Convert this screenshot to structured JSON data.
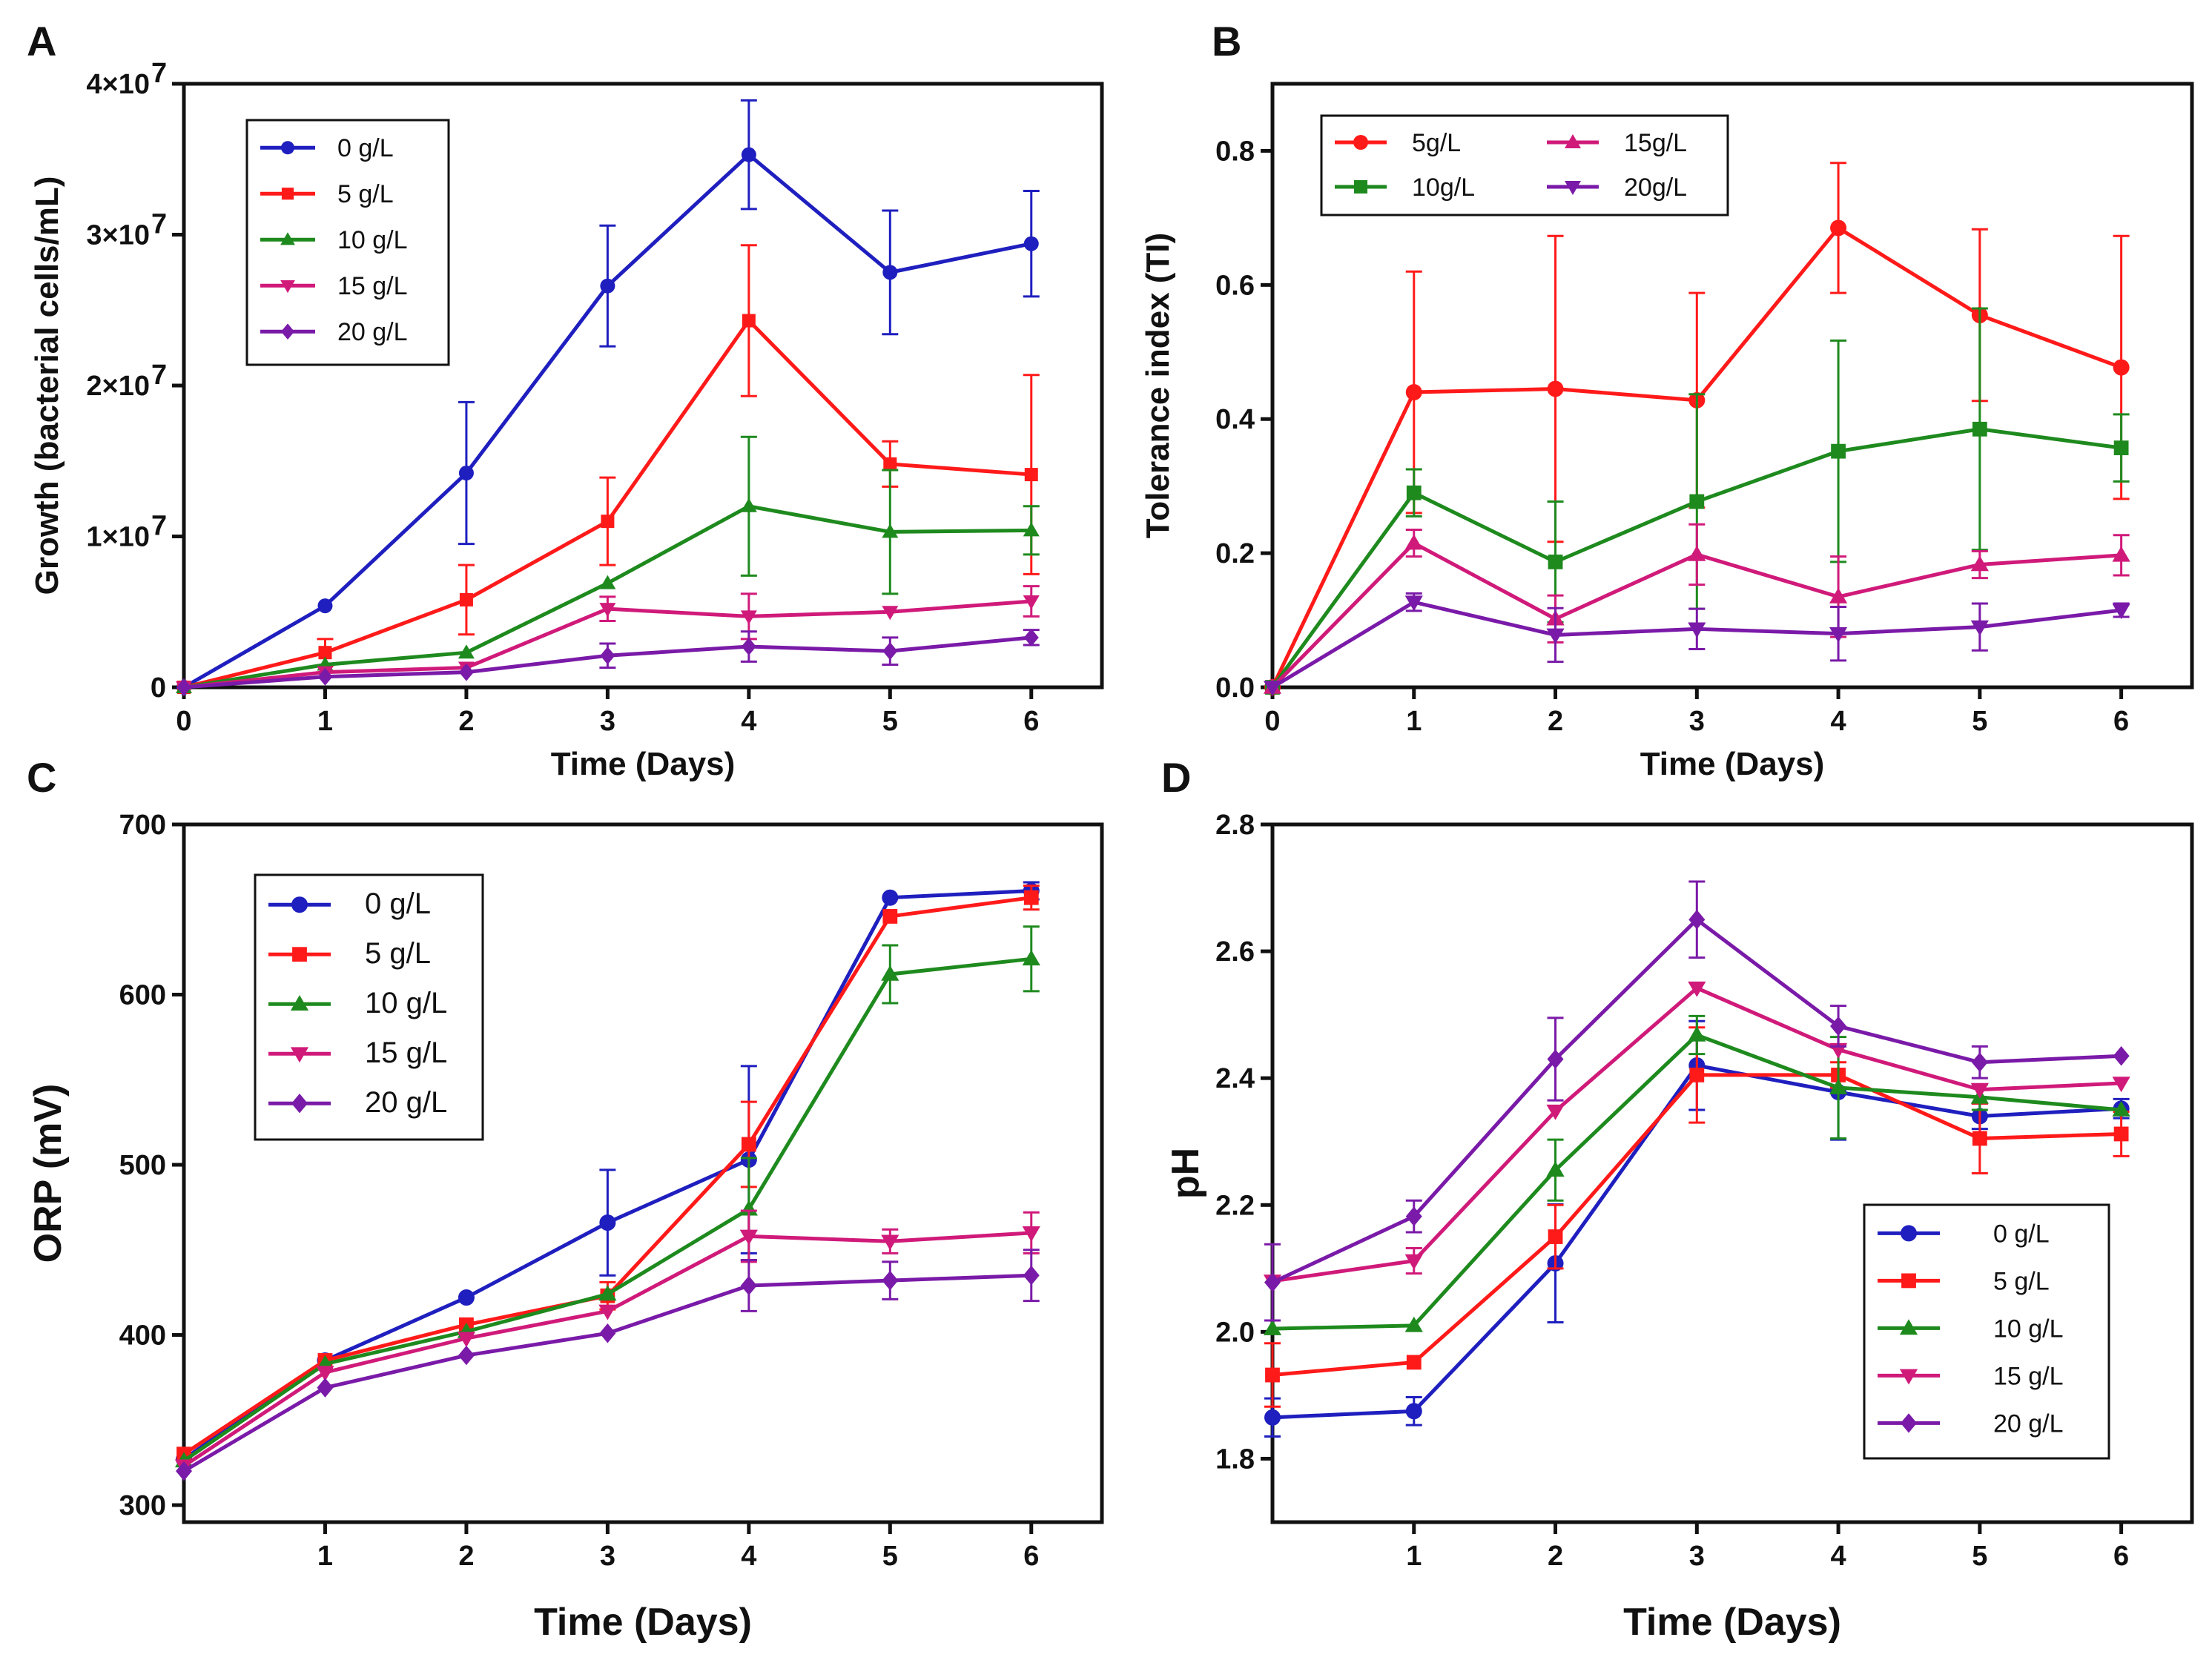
{
  "colors": {
    "0": "#1f1fbf",
    "5": "#ff1a1a",
    "10": "#1e8a1e",
    "15": "#d01a7a",
    "20": "#7a1aa8"
  },
  "chart_data": [
    {
      "id": "A",
      "panel_label": "A",
      "type": "line",
      "title": "",
      "xlabel": "Time (Days)",
      "ylabel": "Growth (bacterial cells/mL)",
      "xlim": [
        0,
        6.5
      ],
      "ylim": [
        0,
        40000000
      ],
      "xticks": [
        0,
        1,
        2,
        3,
        4,
        5,
        6
      ],
      "xtick_labels": [
        "0",
        "1",
        "2",
        "3",
        "4",
        "5",
        "6"
      ],
      "yticks": [
        0,
        10000000,
        20000000,
        30000000,
        40000000
      ],
      "ytick_labels": [
        "0",
        "1×10",
        "2×10",
        "3×10",
        "4×10"
      ],
      "ytick_exponent": "7",
      "legend_position": "top-left",
      "series": [
        {
          "name": "0 g/L",
          "color_key": "0",
          "marker": "circle",
          "x": [
            0,
            1,
            2,
            3,
            4,
            5,
            6
          ],
          "values": [
            0,
            5400000,
            14200000,
            26600000,
            35300000,
            27500000,
            29400000
          ],
          "errors": [
            0,
            0,
            4700000,
            4000000,
            3600000,
            4100000,
            3500000
          ]
        },
        {
          "name": "5 g/L",
          "color_key": "5",
          "marker": "square",
          "x": [
            0,
            1,
            2,
            3,
            4,
            5,
            6
          ],
          "values": [
            0,
            2300000,
            5800000,
            11000000,
            24300000,
            14800000,
            14100000
          ],
          "errors": [
            0,
            900000,
            2300000,
            2900000,
            5000000,
            1500000,
            6600000
          ]
        },
        {
          "name": "10 g/L",
          "color_key": "10",
          "marker": "triangle-up",
          "x": [
            0,
            1,
            2,
            3,
            4,
            5,
            6
          ],
          "values": [
            0,
            1500000,
            2300000,
            6900000,
            12000000,
            10300000,
            10400000
          ],
          "errors": [
            0,
            0,
            0,
            0,
            4600000,
            4100000,
            1600000
          ]
        },
        {
          "name": "15 g/L",
          "color_key": "15",
          "marker": "triangle-down",
          "x": [
            0,
            1,
            2,
            3,
            4,
            5,
            6
          ],
          "values": [
            0,
            1000000,
            1300000,
            5200000,
            4700000,
            5000000,
            5700000
          ],
          "errors": [
            0,
            0,
            0,
            800000,
            1500000,
            0,
            1000000
          ]
        },
        {
          "name": "20 g/L",
          "color_key": "20",
          "marker": "diamond",
          "x": [
            0,
            1,
            2,
            3,
            4,
            5,
            6
          ],
          "values": [
            0,
            700000,
            1000000,
            2100000,
            2700000,
            2400000,
            3300000
          ],
          "errors": [
            0,
            0,
            0,
            800000,
            1000000,
            900000,
            500000
          ]
        }
      ]
    },
    {
      "id": "B",
      "panel_label": "B",
      "type": "line",
      "title": "",
      "xlabel": "Time (Days)",
      "ylabel": "Tolerance index (TI)",
      "xlim": [
        0,
        6.5
      ],
      "ylim": [
        0,
        0.9
      ],
      "xticks": [
        0,
        1,
        2,
        3,
        4,
        5,
        6
      ],
      "xtick_labels": [
        "0",
        "1",
        "2",
        "3",
        "4",
        "5",
        "6"
      ],
      "yticks": [
        0,
        0.2,
        0.4,
        0.6,
        0.8
      ],
      "ytick_labels": [
        "0.0",
        "0.2",
        "0.4",
        "0.6",
        "0.8"
      ],
      "legend_position": "top-left",
      "series": [
        {
          "name": "5g/L",
          "color_key": "5",
          "marker": "circle",
          "x": [
            0,
            1,
            2,
            3,
            4,
            5,
            6
          ],
          "values": [
            0,
            0.44,
            0.445,
            0.428,
            0.685,
            0.555,
            0.477
          ],
          "errors": [
            0,
            0.18,
            0.228,
            0.16,
            0.097,
            0.128,
            0.196
          ]
        },
        {
          "name": "10g/L",
          "color_key": "10",
          "marker": "square",
          "x": [
            0,
            1,
            2,
            3,
            4,
            5,
            6
          ],
          "values": [
            0,
            0.29,
            0.187,
            0.277,
            0.352,
            0.385,
            0.357
          ],
          "errors": [
            0,
            0.035,
            0.09,
            0.16,
            0.165,
            0.18,
            0.05
          ]
        },
        {
          "name": "15g/L",
          "color_key": "15",
          "marker": "triangle-up",
          "x": [
            0,
            1,
            2,
            3,
            4,
            5,
            6
          ],
          "values": [
            0,
            0.215,
            0.102,
            0.198,
            0.135,
            0.183,
            0.197
          ],
          "errors": [
            0,
            0.02,
            0.035,
            0.045,
            0.06,
            0.02,
            0.03
          ]
        },
        {
          "name": "20g/L",
          "color_key": "20",
          "marker": "triangle-down",
          "x": [
            0,
            1,
            2,
            3,
            4,
            5,
            6
          ],
          "values": [
            0,
            0.127,
            0.078,
            0.087,
            0.08,
            0.09,
            0.115
          ],
          "errors": [
            0,
            0.013,
            0.04,
            0.03,
            0.04,
            0.035,
            0.01
          ]
        }
      ]
    },
    {
      "id": "C",
      "panel_label": "C",
      "type": "line",
      "title": "",
      "xlabel": "Time (Days)",
      "ylabel": "ORP (mV)",
      "xlim": [
        0,
        6.5
      ],
      "ylim": [
        290,
        700
      ],
      "xticks": [
        1,
        2,
        3,
        4,
        5,
        6
      ],
      "xtick_labels": [
        "1",
        "2",
        "3",
        "4",
        "5",
        "6"
      ],
      "yticks": [
        300,
        400,
        500,
        600,
        700
      ],
      "ytick_labels": [
        "300",
        "400",
        "500",
        "600",
        "700"
      ],
      "legend_position": "top-left",
      "series": [
        {
          "name": "0  g/L",
          "color_key": "0",
          "marker": "circle",
          "x": [
            0,
            1,
            2,
            3,
            4,
            5,
            6
          ],
          "values": [
            327,
            385,
            422,
            466,
            503,
            657,
            661
          ],
          "errors": [
            0,
            0,
            0,
            31,
            55,
            0,
            5
          ]
        },
        {
          "name": "5 g/L",
          "color_key": "5",
          "marker": "square",
          "x": [
            0,
            1,
            2,
            3,
            4,
            5,
            6
          ],
          "values": [
            330,
            385,
            406,
            423,
            512,
            646,
            657
          ],
          "errors": [
            0,
            0,
            0,
            8,
            25,
            0,
            7
          ]
        },
        {
          "name": "10 g/L",
          "color_key": "10",
          "marker": "triangle-up",
          "x": [
            0,
            1,
            2,
            3,
            4,
            5,
            6
          ],
          "values": [
            326,
            383,
            402,
            424,
            474,
            612,
            621
          ],
          "errors": [
            0,
            0,
            0,
            0,
            30,
            17,
            19
          ]
        },
        {
          "name": "15 g/L",
          "color_key": "15",
          "marker": "triangle-down",
          "x": [
            0,
            1,
            2,
            3,
            4,
            5,
            6
          ],
          "values": [
            323,
            378,
            398,
            414,
            458,
            455,
            460
          ],
          "errors": [
            0,
            0,
            0,
            0,
            15,
            7,
            12
          ]
        },
        {
          "name": "20 g/L",
          "color_key": "20",
          "marker": "diamond",
          "x": [
            0,
            1,
            2,
            3,
            4,
            5,
            6
          ],
          "values": [
            320,
            369,
            388,
            401,
            429,
            432,
            435
          ],
          "errors": [
            0,
            0,
            0,
            0,
            15,
            11,
            15
          ]
        }
      ]
    },
    {
      "id": "D",
      "panel_label": "D",
      "type": "line",
      "title": "",
      "xlabel": "Time (Days)",
      "ylabel": "pH",
      "xlim": [
        0,
        6.5
      ],
      "ylim": [
        1.7,
        2.8
      ],
      "xticks": [
        1,
        2,
        3,
        4,
        5,
        6
      ],
      "xtick_labels": [
        "1",
        "2",
        "3",
        "4",
        "5",
        "6"
      ],
      "yticks": [
        1.8,
        2.0,
        2.2,
        2.4,
        2.6,
        2.8
      ],
      "ytick_labels": [
        "1.8",
        "2.0",
        "2.2",
        "2.4",
        "2.6",
        "2.8"
      ],
      "legend_position": "bottom-right",
      "series": [
        {
          "name": "0 g/L",
          "color_key": "0",
          "marker": "circle",
          "x": [
            0,
            1,
            2,
            3,
            4,
            5,
            6
          ],
          "values": [
            1.865,
            1.875,
            2.108,
            2.42,
            2.378,
            2.34,
            2.352
          ],
          "errors": [
            0.03,
            0.022,
            0.093,
            0.07,
            0.075,
            0.02,
            0.015
          ]
        },
        {
          "name": "5 g/L",
          "color_key": "5",
          "marker": "square",
          "x": [
            0,
            1,
            2,
            3,
            4,
            5,
            6
          ],
          "values": [
            1.932,
            1.952,
            2.15,
            2.405,
            2.405,
            2.305,
            2.312
          ],
          "errors": [
            0.05,
            0,
            0.05,
            0.075,
            0.02,
            0.055,
            0.035
          ]
        },
        {
          "name": "10 g/L",
          "color_key": "10",
          "marker": "triangle-up",
          "x": [
            0,
            1,
            2,
            3,
            4,
            5,
            6
          ],
          "values": [
            2.005,
            2.01,
            2.255,
            2.468,
            2.385,
            2.37,
            2.35
          ],
          "errors": [
            0,
            0,
            0.048,
            0.03,
            0.08,
            0.02,
            0
          ]
        },
        {
          "name": "15 g/L",
          "color_key": "15",
          "marker": "triangle-down",
          "x": [
            0,
            1,
            2,
            3,
            4,
            5,
            6
          ],
          "values": [
            2.08,
            2.112,
            2.348,
            2.542,
            2.445,
            2.382,
            2.392
          ],
          "errors": [
            0,
            0.02,
            0,
            0,
            0,
            0,
            0
          ]
        },
        {
          "name": "20 g/L",
          "color_key": "20",
          "marker": "diamond",
          "x": [
            0,
            1,
            2,
            3,
            4,
            5,
            6
          ],
          "values": [
            2.078,
            2.182,
            2.43,
            2.65,
            2.482,
            2.425,
            2.435
          ],
          "errors": [
            0.06,
            0.025,
            0.065,
            0.06,
            0.032,
            0.025,
            0
          ]
        }
      ]
    }
  ]
}
